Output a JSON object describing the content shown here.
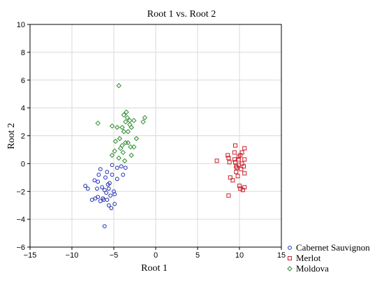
{
  "chart_data": {
    "type": "scatter",
    "title": "Root 1 vs. Root 2",
    "xlabel": "Root 1",
    "ylabel": "Root 2",
    "xlim": [
      -15,
      15
    ],
    "ylim": [
      -6,
      10
    ],
    "xticks": [
      -15,
      -10,
      -5,
      0,
      5,
      10,
      15
    ],
    "yticks": [
      -6,
      -4,
      -2,
      0,
      2,
      4,
      6,
      8,
      10
    ],
    "x_tick_labels": [
      "−15",
      "−10",
      "−5",
      "0",
      "5",
      "10",
      "15"
    ],
    "y_tick_labels": [
      "−6",
      "−4",
      "−2",
      "0",
      "2",
      "4",
      "6",
      "8",
      "10"
    ],
    "grid": true,
    "legend_position": "bottom-right",
    "series": [
      {
        "name": "Cabernet Sauvignon",
        "marker": "circle",
        "color": "#1f2fb0",
        "points": [
          [
            -6.1,
            -4.5
          ],
          [
            -5.3,
            -3.2
          ],
          [
            -5.6,
            -3.0
          ],
          [
            -4.9,
            -2.9
          ],
          [
            -5.8,
            -2.6
          ],
          [
            -6.3,
            -2.5
          ],
          [
            -6.9,
            -2.4
          ],
          [
            -7.2,
            -2.5
          ],
          [
            -7.6,
            -2.6
          ],
          [
            -6.6,
            -2.7
          ],
          [
            -6.2,
            -2.6
          ],
          [
            -5.4,
            -2.3
          ],
          [
            -4.9,
            -2.2
          ],
          [
            -5.9,
            -2.1
          ],
          [
            -6.1,
            -1.9
          ],
          [
            -5.6,
            -1.8
          ],
          [
            -7.0,
            -1.8
          ],
          [
            -6.4,
            -1.7
          ],
          [
            -8.1,
            -1.8
          ],
          [
            -8.4,
            -1.6
          ],
          [
            -6.9,
            -1.3
          ],
          [
            -5.5,
            -1.4
          ],
          [
            -6.0,
            -1.0
          ],
          [
            -7.3,
            -1.2
          ],
          [
            -4.6,
            -1.1
          ],
          [
            -5.2,
            -0.8
          ],
          [
            -6.8,
            -0.8
          ],
          [
            -5.8,
            -0.6
          ],
          [
            -3.9,
            -0.8
          ],
          [
            -6.6,
            -0.4
          ],
          [
            -4.6,
            -0.3
          ],
          [
            -3.6,
            -0.3
          ],
          [
            -5.2,
            -0.1
          ],
          [
            -4.1,
            -0.2
          ],
          [
            -5.0,
            -2.0
          ],
          [
            -5.7,
            -1.5
          ]
        ]
      },
      {
        "name": "Merlot",
        "marker": "square",
        "color": "#c8202a",
        "points": [
          [
            8.7,
            -2.3
          ],
          [
            10.4,
            -1.9
          ],
          [
            10.1,
            -1.8
          ],
          [
            10.6,
            -1.7
          ],
          [
            10.0,
            -1.6
          ],
          [
            9.2,
            -1.2
          ],
          [
            8.9,
            -1.0
          ],
          [
            9.8,
            -0.9
          ],
          [
            10.6,
            -0.7
          ],
          [
            9.6,
            -0.6
          ],
          [
            10.2,
            -0.4
          ],
          [
            9.7,
            -0.3
          ],
          [
            9.9,
            -0.1
          ],
          [
            10.3,
            0.0
          ],
          [
            9.5,
            0.1
          ],
          [
            8.8,
            0.1
          ],
          [
            7.3,
            0.2
          ],
          [
            9.9,
            0.3
          ],
          [
            9.4,
            0.3
          ],
          [
            10.6,
            0.3
          ],
          [
            10.5,
            -0.2
          ],
          [
            10.1,
            0.6
          ],
          [
            8.6,
            0.6
          ],
          [
            9.4,
            0.8
          ],
          [
            10.3,
            0.8
          ],
          [
            10.6,
            1.1
          ],
          [
            9.5,
            1.3
          ],
          [
            9.9,
            0.5
          ],
          [
            9.6,
            -0.2
          ],
          [
            8.7,
            0.4
          ]
        ]
      },
      {
        "name": "Moldova",
        "marker": "diamond",
        "color": "#2e8b2e",
        "points": [
          [
            -4.4,
            5.6
          ],
          [
            -3.8,
            3.5
          ],
          [
            -3.4,
            3.3
          ],
          [
            -3.6,
            3.0
          ],
          [
            -3.1,
            3.1
          ],
          [
            -1.3,
            3.3
          ],
          [
            -1.5,
            3.0
          ],
          [
            -6.9,
            2.9
          ],
          [
            -3.1,
            2.8
          ],
          [
            -4.0,
            2.6
          ],
          [
            -4.6,
            2.6
          ],
          [
            -2.9,
            2.6
          ],
          [
            -5.2,
            2.7
          ],
          [
            -3.8,
            2.3
          ],
          [
            -3.3,
            2.3
          ],
          [
            -4.3,
            1.8
          ],
          [
            -4.8,
            1.6
          ],
          [
            -3.6,
            1.5
          ],
          [
            -3.3,
            1.5
          ],
          [
            -3.0,
            1.2
          ],
          [
            -2.3,
            1.8
          ],
          [
            -4.2,
            1.1
          ],
          [
            -2.9,
            0.6
          ],
          [
            -4.9,
            0.9
          ],
          [
            -5.2,
            0.6
          ],
          [
            -4.4,
            0.4
          ],
          [
            -3.7,
            0.2
          ],
          [
            -3.9,
            0.8
          ],
          [
            -2.6,
            1.2
          ],
          [
            -4.0,
            1.3
          ],
          [
            -3.5,
            3.7
          ],
          [
            -2.6,
            3.1
          ]
        ]
      }
    ]
  }
}
